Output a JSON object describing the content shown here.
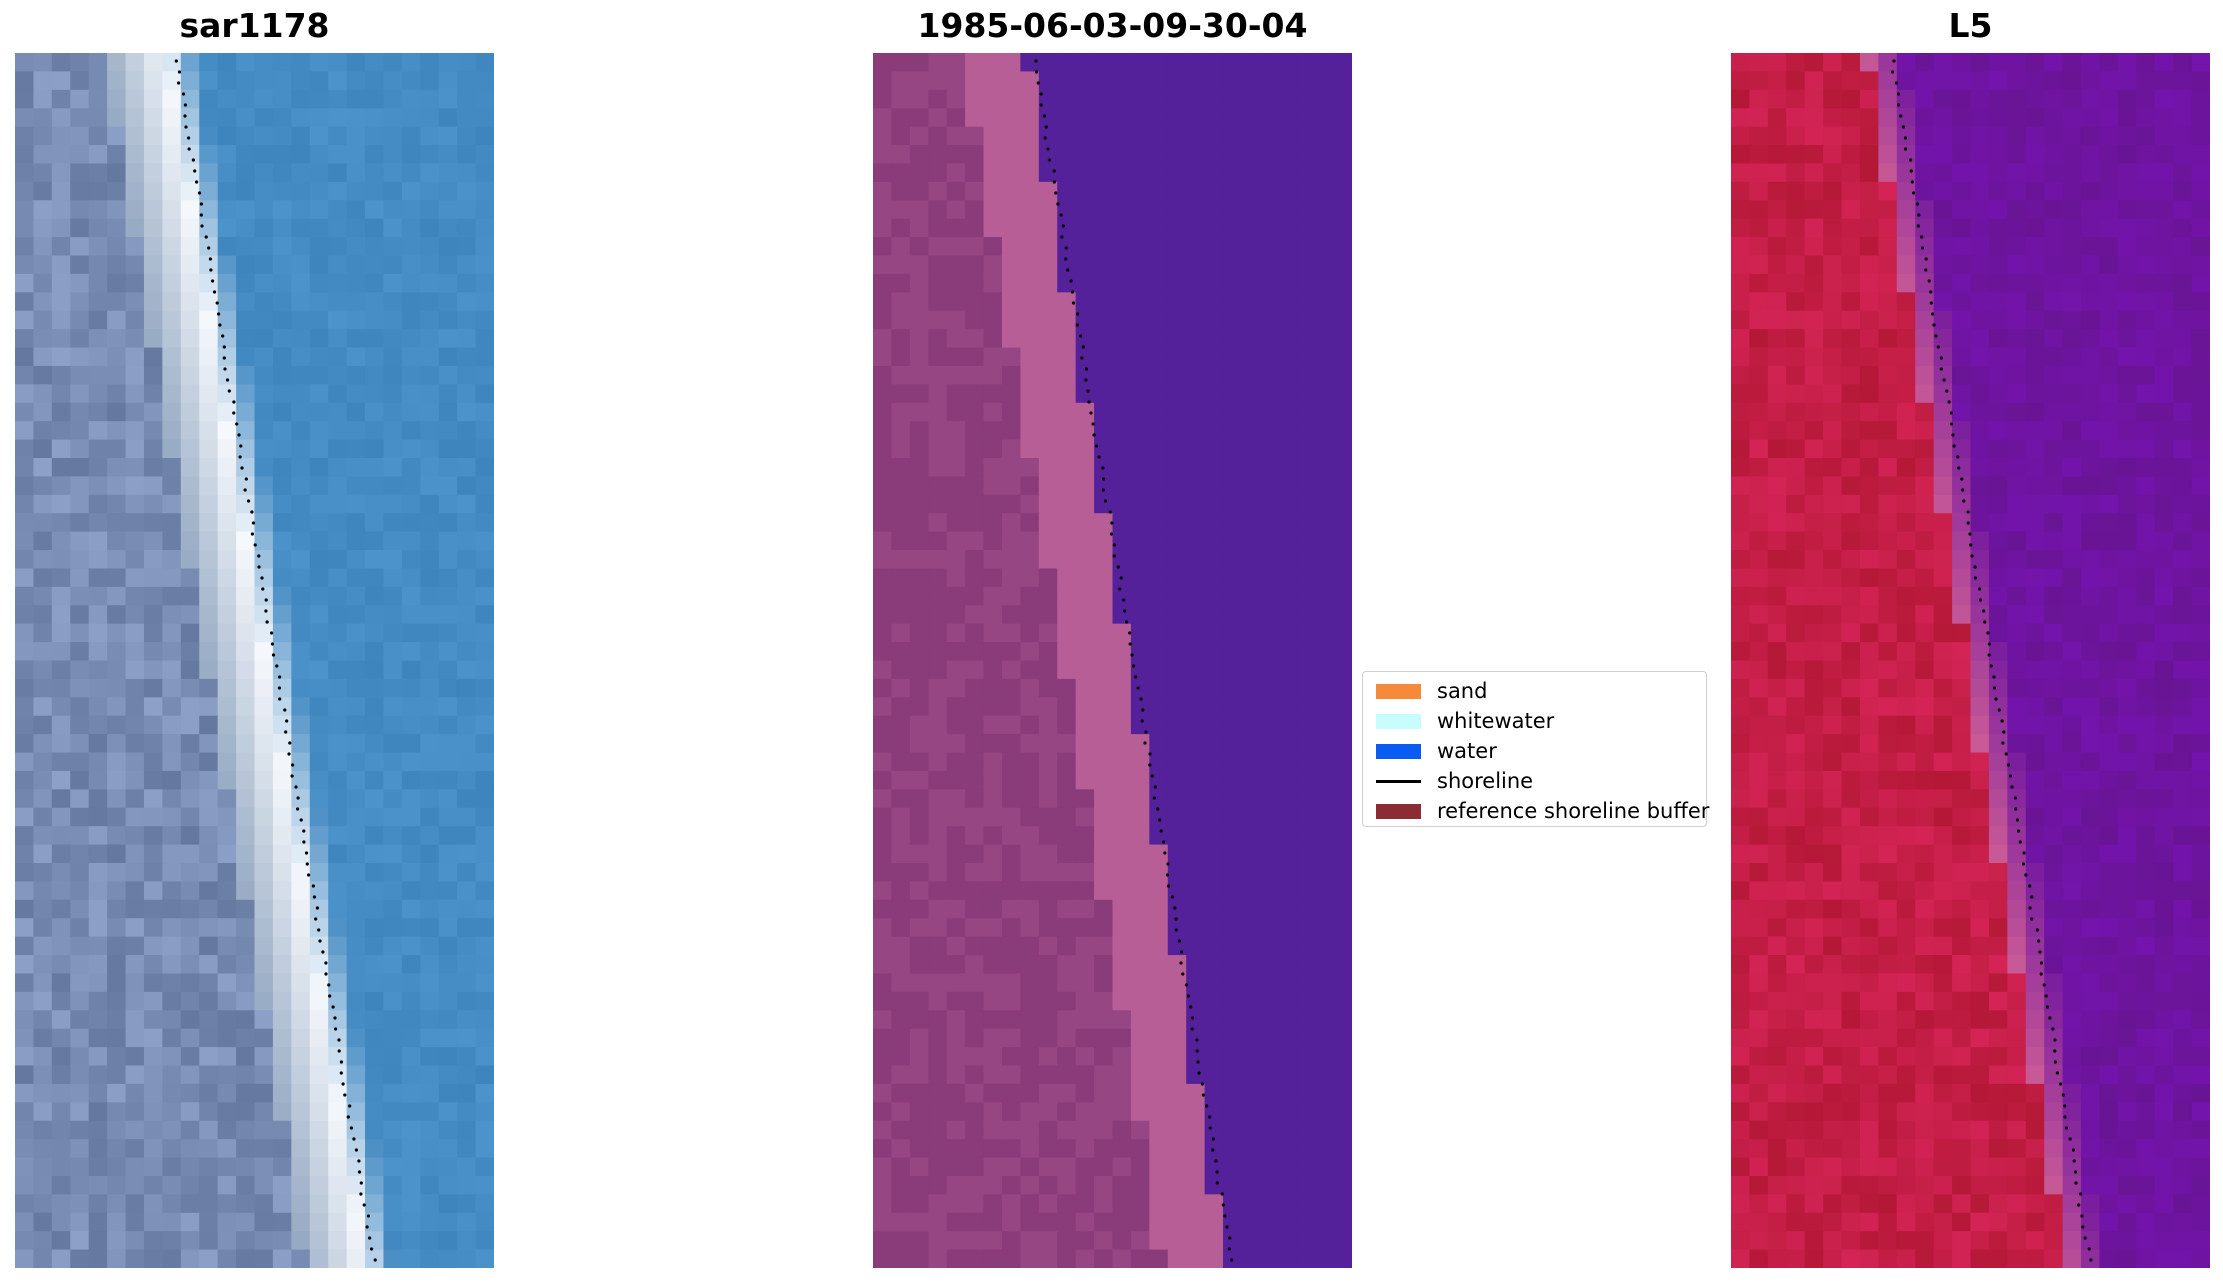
{
  "figure": {
    "titles": {
      "left": "sar1178",
      "center": "1985-06-03-09-30-04",
      "right": "L5"
    }
  },
  "colors": {
    "sand": "#f58a3a",
    "whitewater": "#c8fdfd",
    "water": "#0a5bf2",
    "shoreline": "#000000",
    "reference_shoreline_buffer": "#8b2b34",
    "classified_land": "#8a3b7a",
    "classified_sand_band": "#b85e96",
    "classified_water": "#54219a"
  },
  "legend": {
    "items": [
      {
        "label": "sand",
        "kind": "patch",
        "color": "#f58a3a"
      },
      {
        "label": "whitewater",
        "kind": "patch",
        "color": "#c8fdfd"
      },
      {
        "label": "water",
        "kind": "patch",
        "color": "#0a5bf2"
      },
      {
        "label": "shoreline",
        "kind": "line",
        "color": "#000000"
      },
      {
        "label": "reference shoreline buffer",
        "kind": "patch",
        "color": "#8b2b34"
      }
    ]
  }
}
